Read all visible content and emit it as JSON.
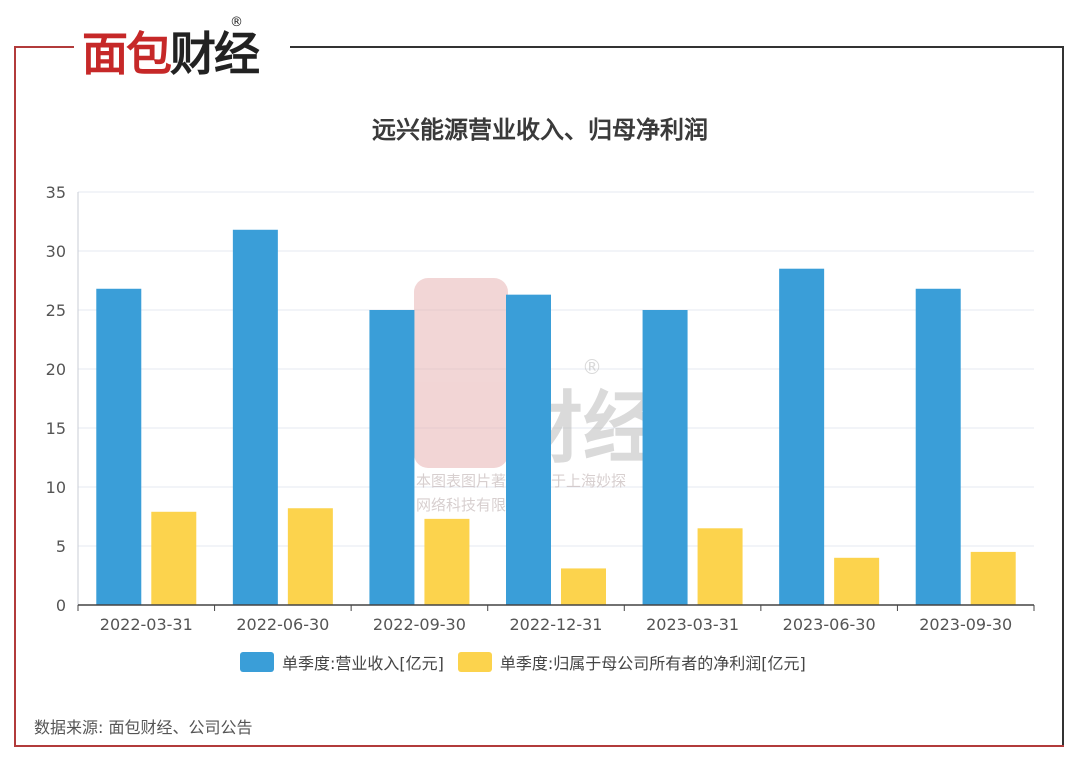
{
  "brand": {
    "name": "面包财经",
    "registered_mark": "®",
    "colors": {
      "red": "#c62828",
      "dark": "#222222"
    }
  },
  "watermark": {
    "line1": "本图表图片著作权属于上海妙探",
    "line2": "网络科技有限公司"
  },
  "source_note": "数据来源: 面包财经、公司公告",
  "chart_data": {
    "type": "bar",
    "title": "远兴能源营业收入、归母净利润",
    "categories": [
      "2022-03-31",
      "2022-06-30",
      "2022-09-30",
      "2022-12-31",
      "2023-03-31",
      "2023-06-30",
      "2023-09-30"
    ],
    "series": [
      {
        "name": "单季度:营业收入[亿元]",
        "color": "#3a9ed8",
        "values": [
          26.8,
          31.8,
          25.0,
          26.3,
          25.0,
          28.5,
          26.8
        ]
      },
      {
        "name": "单季度:归属于母公司所有者的净利润[亿元]",
        "color": "#fcd34d",
        "values": [
          7.9,
          8.2,
          7.3,
          3.1,
          6.5,
          4.0,
          4.5
        ]
      }
    ],
    "ylim": [
      0,
      35
    ],
    "yticks": [
      0,
      5,
      10,
      15,
      20,
      25,
      30,
      35
    ],
    "grid": true,
    "legend_position": "bottom"
  }
}
